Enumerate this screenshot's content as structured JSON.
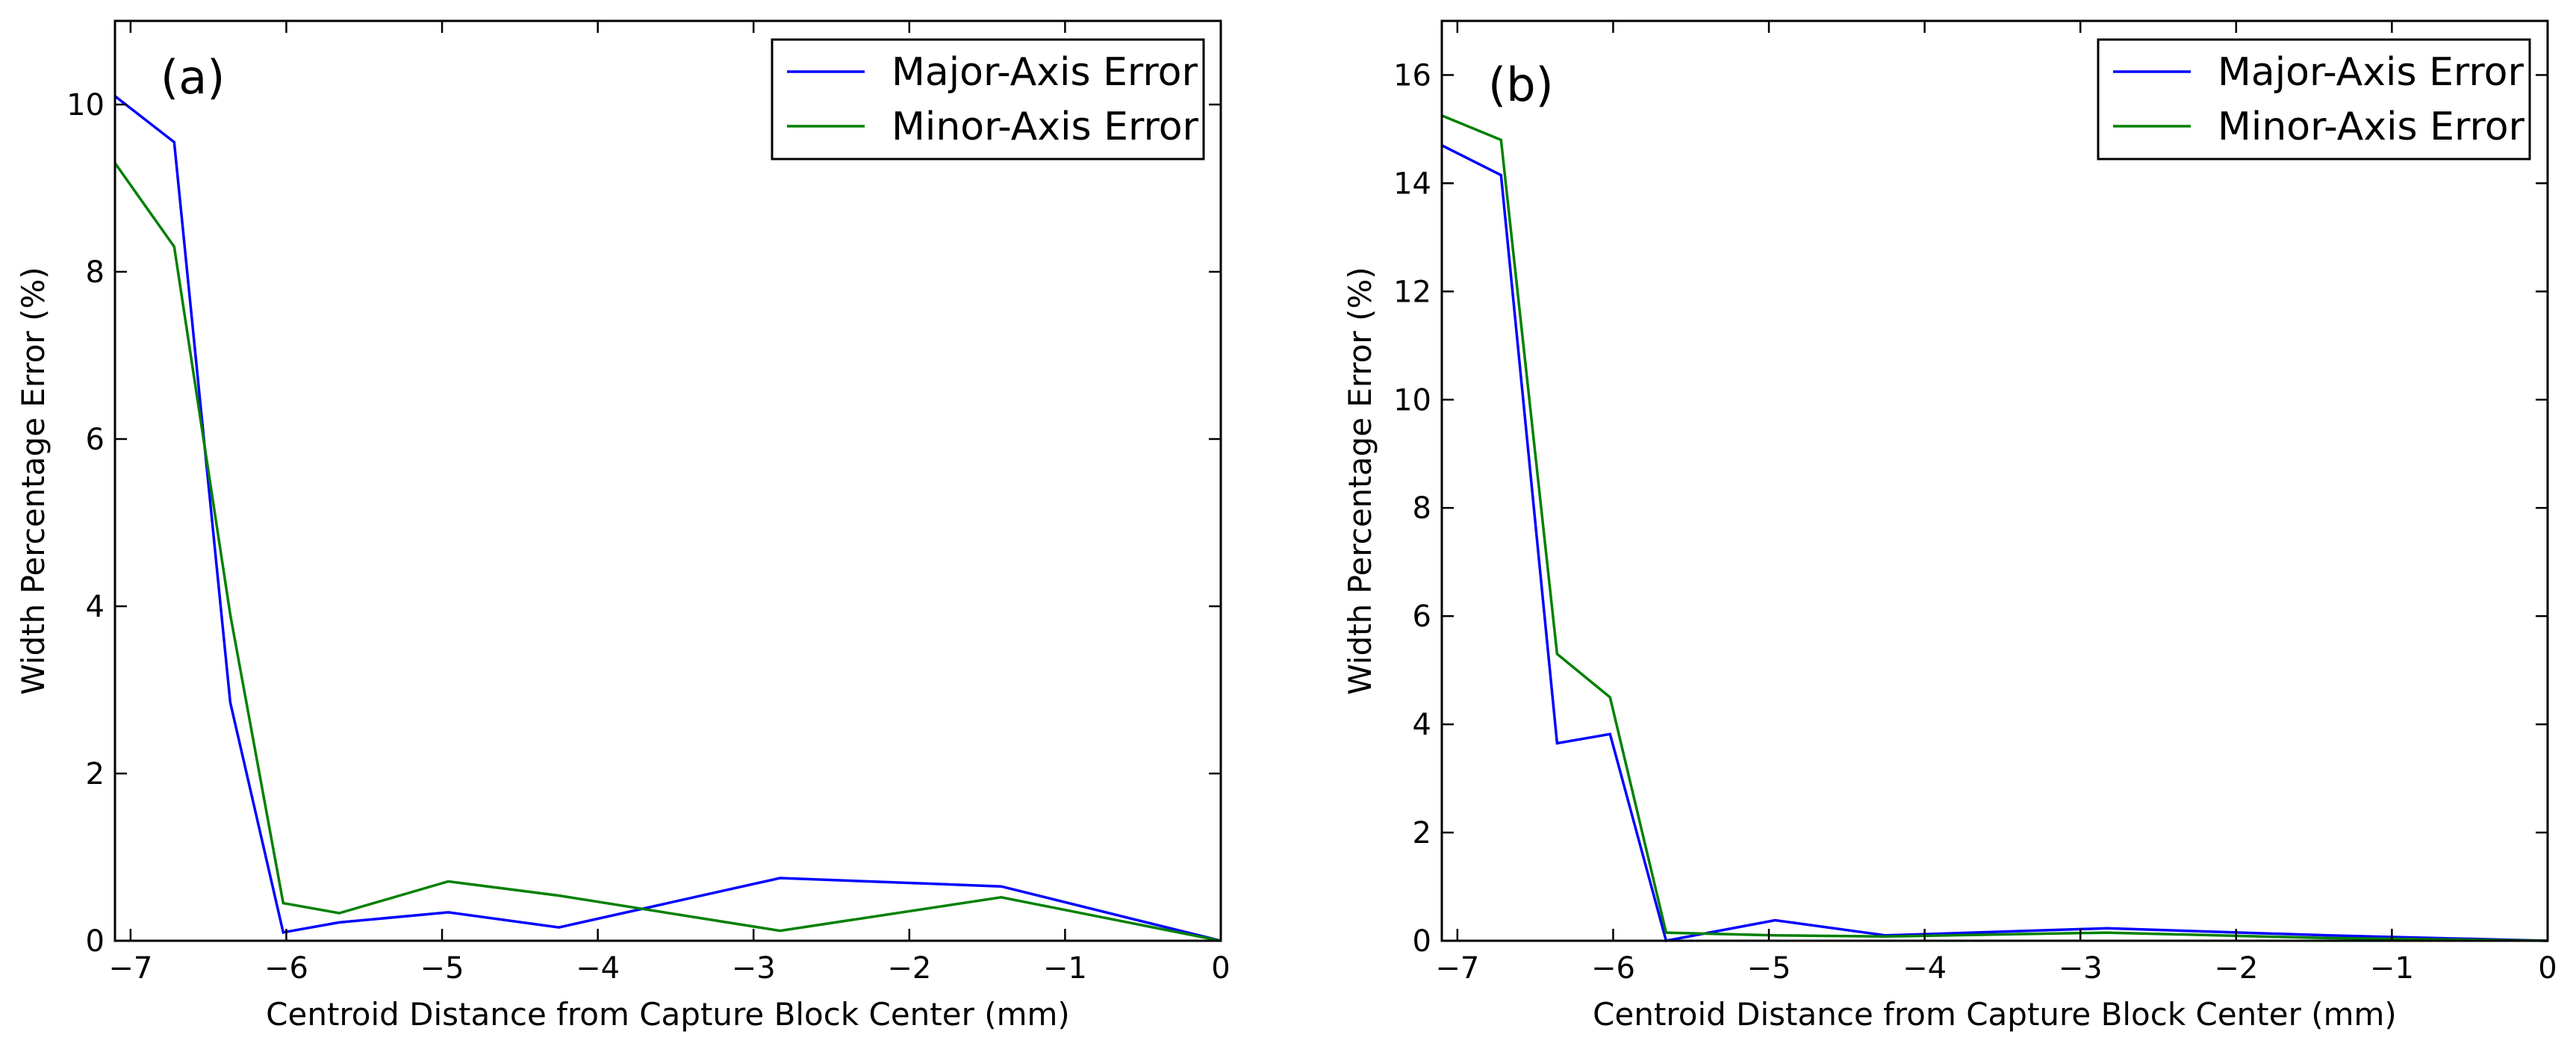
{
  "figure": {
    "panels": [
      {
        "label": "(a)"
      },
      {
        "label": "(b)"
      }
    ]
  },
  "colors": {
    "major": "#0000ff",
    "minor": "#008000",
    "axes": "#000000",
    "background": "#ffffff"
  },
  "chart_data": [
    {
      "type": "line",
      "panel": "(a)",
      "xlabel": "Centroid Distance from Capture Block Center (mm)",
      "ylabel": "Width Percentage Error (%)",
      "xlim": [
        -7.1,
        0
      ],
      "ylim": [
        0,
        11
      ],
      "xticks": [
        -7,
        -6,
        -5,
        -4,
        -3,
        -2,
        -1,
        0
      ],
      "xtick_labels": [
        "−7",
        "−6",
        "−5",
        "−4",
        "−3",
        "−2",
        "−1",
        "0"
      ],
      "yticks": [
        0,
        2,
        4,
        6,
        8,
        10
      ],
      "ytick_labels": [
        "0",
        "2",
        "4",
        "6",
        "8",
        "10"
      ],
      "grid": false,
      "legend": "top-right",
      "series": [
        {
          "name": "Major-Axis Error",
          "color": "#0000ff",
          "x": [
            -7.1,
            -6.72,
            -6.36,
            -6.02,
            -5.66,
            -4.96,
            -4.25,
            -2.83,
            -1.41,
            0.0
          ],
          "y": [
            10.1,
            9.55,
            2.85,
            0.1,
            0.22,
            0.34,
            0.16,
            0.75,
            0.65,
            0.0
          ]
        },
        {
          "name": "Minor-Axis Error",
          "color": "#008000",
          "x": [
            -7.1,
            -6.72,
            -6.36,
            -6.02,
            -5.66,
            -4.96,
            -4.25,
            -2.83,
            -1.41,
            0.0
          ],
          "y": [
            9.3,
            8.3,
            3.9,
            0.45,
            0.33,
            0.71,
            0.54,
            0.12,
            0.52,
            0.0
          ]
        }
      ]
    },
    {
      "type": "line",
      "panel": "(b)",
      "xlabel": "Centroid Distance from Capture Block Center (mm)",
      "ylabel": "Width Percentage Error (%)",
      "xlim": [
        -7.1,
        0
      ],
      "ylim": [
        0,
        17
      ],
      "xticks": [
        -7,
        -6,
        -5,
        -4,
        -3,
        -2,
        -1,
        0
      ],
      "xtick_labels": [
        "−7",
        "−6",
        "−5",
        "−4",
        "−3",
        "−2",
        "−1",
        "0"
      ],
      "yticks": [
        0,
        2,
        4,
        6,
        8,
        10,
        12,
        14,
        16
      ],
      "ytick_labels": [
        "0",
        "2",
        "4",
        "6",
        "8",
        "10",
        "12",
        "14",
        "16"
      ],
      "grid": false,
      "legend": "top-right",
      "series": [
        {
          "name": "Major-Axis Error",
          "color": "#0000ff",
          "x": [
            -7.1,
            -6.72,
            -6.36,
            -6.02,
            -5.66,
            -4.96,
            -4.25,
            -2.83,
            -1.41,
            0.0
          ],
          "y": [
            14.7,
            14.15,
            3.65,
            3.82,
            0.0,
            0.38,
            0.1,
            0.23,
            0.1,
            0.0
          ]
        },
        {
          "name": "Minor-Axis Error",
          "color": "#008000",
          "x": [
            -7.1,
            -6.72,
            -6.36,
            -6.02,
            -5.66,
            -4.96,
            -4.25,
            -2.83,
            -1.41,
            0.0
          ],
          "y": [
            15.25,
            14.8,
            5.3,
            4.5,
            0.15,
            0.1,
            0.08,
            0.15,
            0.05,
            0.0
          ]
        }
      ]
    }
  ]
}
